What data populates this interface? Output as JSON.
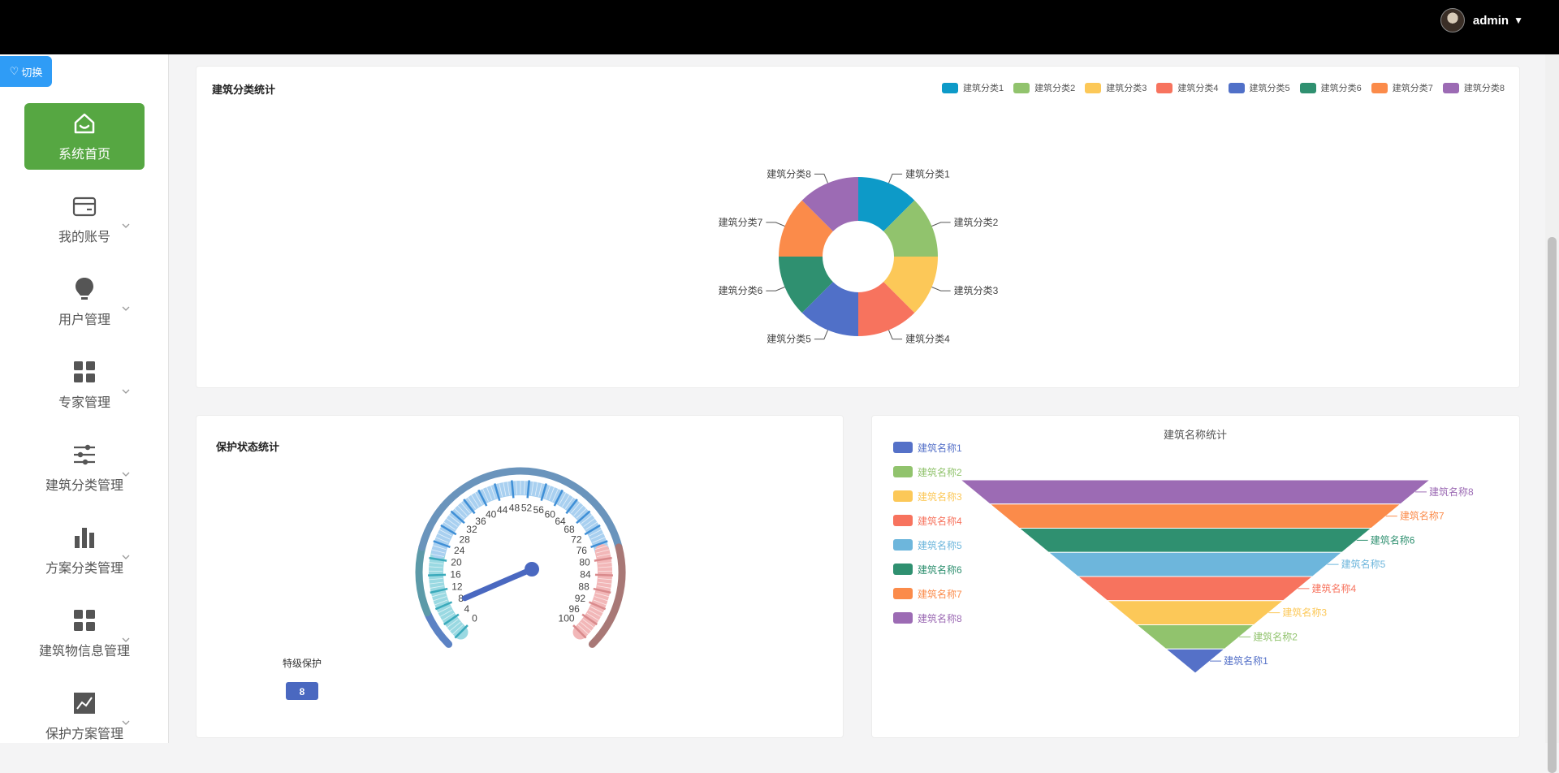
{
  "header": {
    "username": "admin"
  },
  "toggle": {
    "label": "切换"
  },
  "sidebar": {
    "items": [
      {
        "label": "系统首页",
        "icon": "home-icon",
        "active": true
      },
      {
        "label": "我的账号",
        "icon": "wallet-icon"
      },
      {
        "label": "用户管理",
        "icon": "bulb-icon"
      },
      {
        "label": "专家管理",
        "icon": "grid-icon"
      },
      {
        "label": "建筑分类管理",
        "icon": "sliders-icon"
      },
      {
        "label": "方案分类管理",
        "icon": "bar-chart-icon"
      },
      {
        "label": "建筑物信息管理",
        "icon": "grid-icon"
      },
      {
        "label": "保护方案管理",
        "icon": "line-chart-icon"
      }
    ]
  },
  "colors": [
    "#0d9ac8",
    "#91c36d",
    "#fcc858",
    "#f7735e",
    "#5070c8",
    "#2f9070",
    "#fb8b4a",
    "#9c6bb4"
  ],
  "funnel_colors": [
    "#5571c8",
    "#91c36d",
    "#fcc858",
    "#f7735e",
    "#6db6dc",
    "#2f9070",
    "#fb8b4a",
    "#9c6bb4"
  ],
  "chart_data": [
    {
      "type": "pie",
      "title": "建筑分类统计",
      "categories": [
        "建筑分类1",
        "建筑分类2",
        "建筑分类3",
        "建筑分类4",
        "建筑分类5",
        "建筑分类6",
        "建筑分类7",
        "建筑分类8"
      ],
      "values": [
        1,
        1,
        1,
        1,
        1,
        1,
        1,
        1
      ],
      "legend": "top-right"
    },
    {
      "type": "gauge",
      "title": "保护状态统计",
      "name": "特级保护",
      "value": 8,
      "range": [
        0,
        100
      ],
      "ticks": [
        "0",
        "4",
        "8",
        "12",
        "16",
        "20",
        "24",
        "28",
        "32",
        "36",
        "40",
        "44",
        "48",
        "52",
        "56",
        "60",
        "64",
        "68",
        "72",
        "76",
        "80",
        "84",
        "88",
        "92",
        "96",
        "100"
      ]
    },
    {
      "type": "funnel",
      "title": "建筑名称统计",
      "categories": [
        "建筑名称1",
        "建筑名称2",
        "建筑名称3",
        "建筑名称4",
        "建筑名称5",
        "建筑名称6",
        "建筑名称7",
        "建筑名称8"
      ],
      "values": [
        1,
        2,
        3,
        4,
        5,
        6,
        7,
        8
      ],
      "legend": "left"
    }
  ]
}
